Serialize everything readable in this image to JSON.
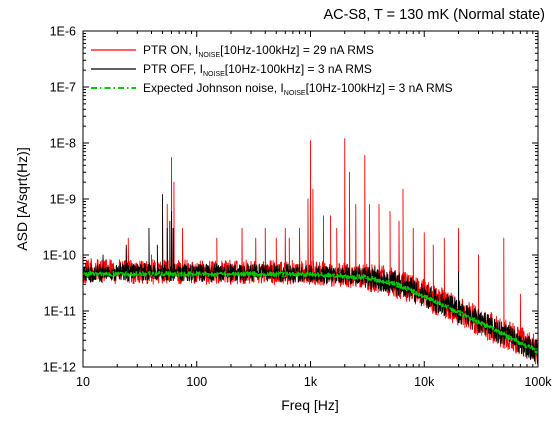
{
  "chart_data": {
    "type": "line",
    "title": "AC-S8, T = 130 mK (Normal state)",
    "xlabel": "Freq [Hz]",
    "ylabel": "ASD [A/sqrt(Hz)]",
    "x_scale": "log",
    "y_scale": "log",
    "xlim": [
      10,
      100000
    ],
    "ylim": [
      1e-12,
      1e-06
    ],
    "x_ticks": [
      {
        "value": 10,
        "label": "10"
      },
      {
        "value": 100,
        "label": "100"
      },
      {
        "value": 1000,
        "label": "1k"
      },
      {
        "value": 10000,
        "label": "10k"
      },
      {
        "value": 100000,
        "label": "100k"
      }
    ],
    "y_ticks": [
      {
        "value": 1e-12,
        "label": "1E-12"
      },
      {
        "value": 1e-11,
        "label": "1E-11"
      },
      {
        "value": 1e-10,
        "label": "1E-10"
      },
      {
        "value": 1e-09,
        "label": "1E-9"
      },
      {
        "value": 1e-08,
        "label": "1E-8"
      },
      {
        "value": 1e-07,
        "label": "1E-7"
      },
      {
        "value": 1e-06,
        "label": "1E-6"
      }
    ],
    "grid": false,
    "legend_position": "top-left",
    "series": [
      {
        "name": "PTR ON",
        "legend": {
          "pre": "PTR ON,   I",
          "sub": "NOISE",
          "post": "[10Hz-100kHz] = 29 nA RMS"
        },
        "color": "#ff0000",
        "style": "solid",
        "baseline": [
          [
            10,
            4.5e-11
          ],
          [
            12,
            5.5e-11
          ],
          [
            20,
            5e-11
          ],
          [
            40,
            5e-11
          ],
          [
            100,
            5e-11
          ],
          [
            1000,
            4.8e-11
          ],
          [
            3000,
            4.2e-11
          ],
          [
            6000,
            3e-11
          ],
          [
            10000,
            2e-11
          ],
          [
            20000,
            1e-11
          ],
          [
            40000,
            5e-12
          ],
          [
            100000,
            2e-12
          ]
        ],
        "peaks": [
          [
            15,
            9e-11
          ],
          [
            24,
            1.3e-10
          ],
          [
            25,
            2e-10
          ],
          [
            40,
            1e-10
          ],
          [
            50,
            5e-10
          ],
          [
            55,
            8e-10
          ],
          [
            60,
            5.5e-09
          ],
          [
            63,
            2e-09
          ],
          [
            75,
            3e-10
          ],
          [
            150,
            2e-10
          ],
          [
            250,
            3e-10
          ],
          [
            330,
            2e-10
          ],
          [
            400,
            3e-10
          ],
          [
            500,
            2e-10
          ],
          [
            600,
            3e-10
          ],
          [
            650,
            2e-10
          ],
          [
            800,
            3e-10
          ],
          [
            950,
            1e-09
          ],
          [
            1000,
            1.1e-08
          ],
          [
            1050,
            1.5e-09
          ],
          [
            1300,
            5e-10
          ],
          [
            1500,
            5e-10
          ],
          [
            1700,
            3e-10
          ],
          [
            2000,
            1.2e-08
          ],
          [
            2200,
            3e-09
          ],
          [
            2500,
            8e-10
          ],
          [
            3000,
            6e-09
          ],
          [
            3300,
            8e-10
          ],
          [
            4000,
            8e-10
          ],
          [
            5000,
            6e-10
          ],
          [
            6000,
            4e-10
          ],
          [
            6500,
            1.5e-09
          ],
          [
            8000,
            3e-10
          ],
          [
            10000,
            2.5e-10
          ],
          [
            12000,
            1.5e-10
          ],
          [
            15000,
            2e-10
          ],
          [
            20000,
            3e-10
          ],
          [
            30000,
            1e-10
          ],
          [
            50000,
            2e-10
          ],
          [
            70000,
            2e-11
          ]
        ]
      },
      {
        "name": "PTR OFF",
        "legend": {
          "pre": "PTR OFF,   I",
          "sub": "NOISE",
          "post": "[10Hz-100kHz] = 3 nA RMS"
        },
        "color": "#000000",
        "style": "solid",
        "baseline": [
          [
            10,
            4.5e-11
          ],
          [
            20,
            5e-11
          ],
          [
            100,
            4.8e-11
          ],
          [
            1000,
            4.7e-11
          ],
          [
            3000,
            4.2e-11
          ],
          [
            6000,
            3e-11
          ],
          [
            10000,
            1.9e-11
          ],
          [
            20000,
            1e-11
          ],
          [
            40000,
            5e-12
          ],
          [
            100000,
            1.8e-12
          ]
        ],
        "peaks": [
          [
            15,
            1e-10
          ],
          [
            24,
            1.5e-10
          ],
          [
            38,
            3e-10
          ],
          [
            45,
            1.5e-10
          ],
          [
            50,
            1.2e-09
          ],
          [
            55,
            3e-10
          ],
          [
            58,
            4e-10
          ],
          [
            60,
            6e-10
          ],
          [
            62,
            3e-10
          ],
          [
            150,
            7e-11
          ],
          [
            200,
            6e-11
          ],
          [
            800,
            6e-11
          ],
          [
            20000,
            5e-11
          ]
        ]
      },
      {
        "name": "Expected Johnson noise",
        "legend": {
          "pre": "Expected  Johnson noise,   I",
          "sub": "NOISE",
          "post": "[10Hz-100kHz] = 3 nA RMS"
        },
        "color": "#00cc00",
        "style": "dash-dot",
        "baseline": [
          [
            10,
            4.6e-11
          ],
          [
            100,
            4.6e-11
          ],
          [
            1000,
            4.5e-11
          ],
          [
            3000,
            4e-11
          ],
          [
            6000,
            2.9e-11
          ],
          [
            10000,
            1.8e-11
          ],
          [
            20000,
            9.5e-12
          ],
          [
            40000,
            4.8e-12
          ],
          [
            100000,
            1.9e-12
          ]
        ],
        "peaks": []
      }
    ]
  }
}
